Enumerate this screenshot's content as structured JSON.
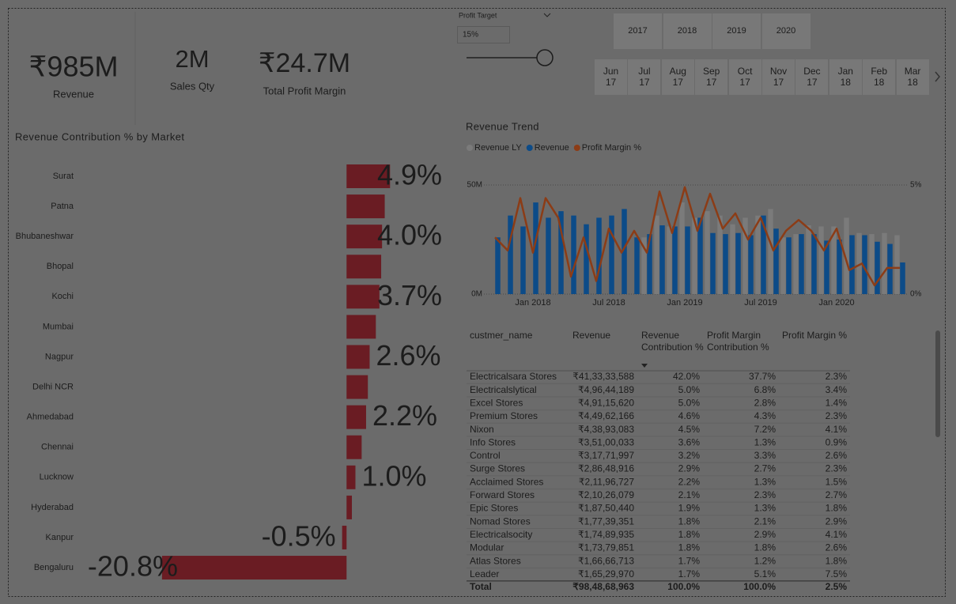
{
  "kpis": [
    {
      "value": "₹985M",
      "label": "Revenue"
    },
    {
      "value": "2M",
      "label": "Sales Qty"
    },
    {
      "value": "₹24.7M",
      "label": "Total Profit Margin"
    }
  ],
  "profit_target": {
    "label": "Profit Target",
    "value": "15%"
  },
  "years": [
    "2017",
    "2018",
    "2019",
    "2020"
  ],
  "months": [
    {
      "month": "Jun",
      "year": "17"
    },
    {
      "month": "Jul",
      "year": "17"
    },
    {
      "month": "Aug",
      "year": "17"
    },
    {
      "month": "Sep",
      "year": "17"
    },
    {
      "month": "Oct",
      "year": "17"
    },
    {
      "month": "Nov",
      "year": "17"
    },
    {
      "month": "Dec",
      "year": "17"
    },
    {
      "month": "Jan",
      "year": "18"
    },
    {
      "month": "Feb",
      "year": "18"
    },
    {
      "month": "Mar",
      "year": "18"
    }
  ],
  "chart_data": [
    {
      "type": "bar",
      "orientation": "horizontal",
      "title": "Revenue Contribution % by Market",
      "categories": [
        "Surat",
        "Patna",
        "Bhubaneshwar",
        "Bhopal",
        "Kochi",
        "Mumbai",
        "Nagpur",
        "Delhi NCR",
        "Ahmedabad",
        "Chennai",
        "Lucknow",
        "Hyderabad",
        "Kanpur",
        "Bengaluru"
      ],
      "values": [
        4.9,
        4.3,
        4.0,
        3.9,
        3.7,
        3.3,
        2.6,
        2.4,
        2.2,
        1.7,
        1.0,
        0.6,
        -0.5,
        -20.8
      ],
      "value_labels": [
        "4.9%",
        null,
        "4.0%",
        null,
        "3.7%",
        null,
        "2.6%",
        null,
        "2.2%",
        null,
        "1.0%",
        null,
        "-0.5%",
        "-20.8%"
      ],
      "color": "#6a1c23",
      "xlim": [
        -21.5,
        5.5
      ]
    },
    {
      "type": "combo",
      "title": "Revenue Trend",
      "x": [
        "2017-10",
        "2017-11",
        "2017-12",
        "2018-01",
        "2018-02",
        "2018-03",
        "2018-04",
        "2018-05",
        "2018-06",
        "2018-07",
        "2018-08",
        "2018-09",
        "2018-10",
        "2018-11",
        "2018-12",
        "2019-01",
        "2019-02",
        "2019-03",
        "2019-04",
        "2019-05",
        "2019-06",
        "2019-07",
        "2019-08",
        "2019-09",
        "2019-10",
        "2019-11",
        "2019-12",
        "2020-01",
        "2020-02",
        "2020-03",
        "2020-04",
        "2020-05",
        "2020-06"
      ],
      "xticks": [
        {
          "value": "2018-01",
          "label": "Jan 2018"
        },
        {
          "value": "2018-07",
          "label": "Jul 2018"
        },
        {
          "value": "2019-01",
          "label": "Jan 2019"
        },
        {
          "value": "2019-07",
          "label": "Jul 2019"
        },
        {
          "value": "2020-01",
          "label": "Jan 2020"
        }
      ],
      "ylim": [
        0,
        50
      ],
      "yticks": [
        {
          "value": 0,
          "label": "0M"
        },
        {
          "value": 50,
          "label": "50M"
        }
      ],
      "y2lim": [
        0,
        5
      ],
      "y2ticks": [
        {
          "value": 0,
          "label": "0%"
        },
        {
          "value": 5,
          "label": "5%"
        }
      ],
      "grid": true,
      "series": [
        {
          "name": "Revenue LY",
          "color": "#7b7b7b",
          "type": "bar",
          "values": [
            null,
            null,
            null,
            null,
            null,
            null,
            null,
            null,
            null,
            null,
            null,
            null,
            26,
            36,
            31,
            42,
            35,
            38,
            36,
            32,
            35,
            36,
            39,
            26,
            27.5,
            31.5,
            31,
            31,
            35,
            28,
            27.5,
            28,
            27
          ]
        },
        {
          "name": "Revenue",
          "color": "#0c4b88",
          "type": "bar",
          "values": [
            26,
            36,
            31,
            42,
            35,
            38,
            36,
            32,
            35,
            36,
            39,
            26,
            27.5,
            31.5,
            31,
            31,
            35,
            28,
            27.5,
            28,
            27,
            36,
            30,
            26,
            27.5,
            27.5,
            24.5,
            25,
            27,
            27,
            24,
            23,
            14.5
          ]
        },
        {
          "name": "Profit Margin %",
          "color": "#8c3c16",
          "type": "line",
          "axis": "y2",
          "values": [
            2.6,
            2.0,
            4.4,
            1.9,
            4.4,
            3.5,
            0.8,
            2.6,
            0.6,
            3.0,
            1.9,
            2.9,
            1.9,
            4.7,
            2.8,
            4.9,
            2.9,
            4.6,
            3.0,
            3.7,
            2.5,
            3.5,
            2.0,
            2.9,
            3.4,
            2.9,
            2.0,
            3.0,
            1.1,
            1.4,
            0.4,
            1.2,
            1.2
          ]
        }
      ]
    }
  ],
  "table": {
    "columns": [
      "custmer_name",
      "Revenue",
      "Revenue Contribution %",
      "Profit Margin Contribution %",
      "Profit Margin %"
    ],
    "rows": [
      [
        "Electricalsara Stores",
        "₹41,33,33,588",
        "42.0%",
        "37.7%",
        "2.3%"
      ],
      [
        "Electricalslytical",
        "₹4,96,44,189",
        "5.0%",
        "6.8%",
        "3.4%"
      ],
      [
        "Excel Stores",
        "₹4,91,15,620",
        "5.0%",
        "2.8%",
        "1.4%"
      ],
      [
        "Premium Stores",
        "₹4,49,62,166",
        "4.6%",
        "4.3%",
        "2.3%"
      ],
      [
        "Nixon",
        "₹4,38,93,083",
        "4.5%",
        "7.2%",
        "4.1%"
      ],
      [
        "Info Stores",
        "₹3,51,00,033",
        "3.6%",
        "1.3%",
        "0.9%"
      ],
      [
        "Control",
        "₹3,17,71,997",
        "3.2%",
        "3.3%",
        "2.6%"
      ],
      [
        "Surge Stores",
        "₹2,86,48,916",
        "2.9%",
        "2.7%",
        "2.3%"
      ],
      [
        "Acclaimed Stores",
        "₹2,11,96,727",
        "2.2%",
        "1.3%",
        "1.5%"
      ],
      [
        "Forward Stores",
        "₹2,10,26,079",
        "2.1%",
        "2.3%",
        "2.7%"
      ],
      [
        "Epic Stores",
        "₹1,87,50,440",
        "1.9%",
        "1.3%",
        "1.8%"
      ],
      [
        "Nomad Stores",
        "₹1,77,39,351",
        "1.8%",
        "2.1%",
        "2.9%"
      ],
      [
        "Electricalsocity",
        "₹1,74,89,935",
        "1.8%",
        "2.9%",
        "4.1%"
      ],
      [
        "Modular",
        "₹1,73,79,851",
        "1.8%",
        "1.8%",
        "2.6%"
      ],
      [
        "Atlas Stores",
        "₹1,66,66,713",
        "1.7%",
        "1.2%",
        "1.8%"
      ],
      [
        "Leader",
        "₹1,65,29,970",
        "1.7%",
        "5.1%",
        "7.5%"
      ]
    ],
    "total": [
      "Total",
      "₹98,48,68,963",
      "100.0%",
      "100.0%",
      "2.5%"
    ]
  }
}
